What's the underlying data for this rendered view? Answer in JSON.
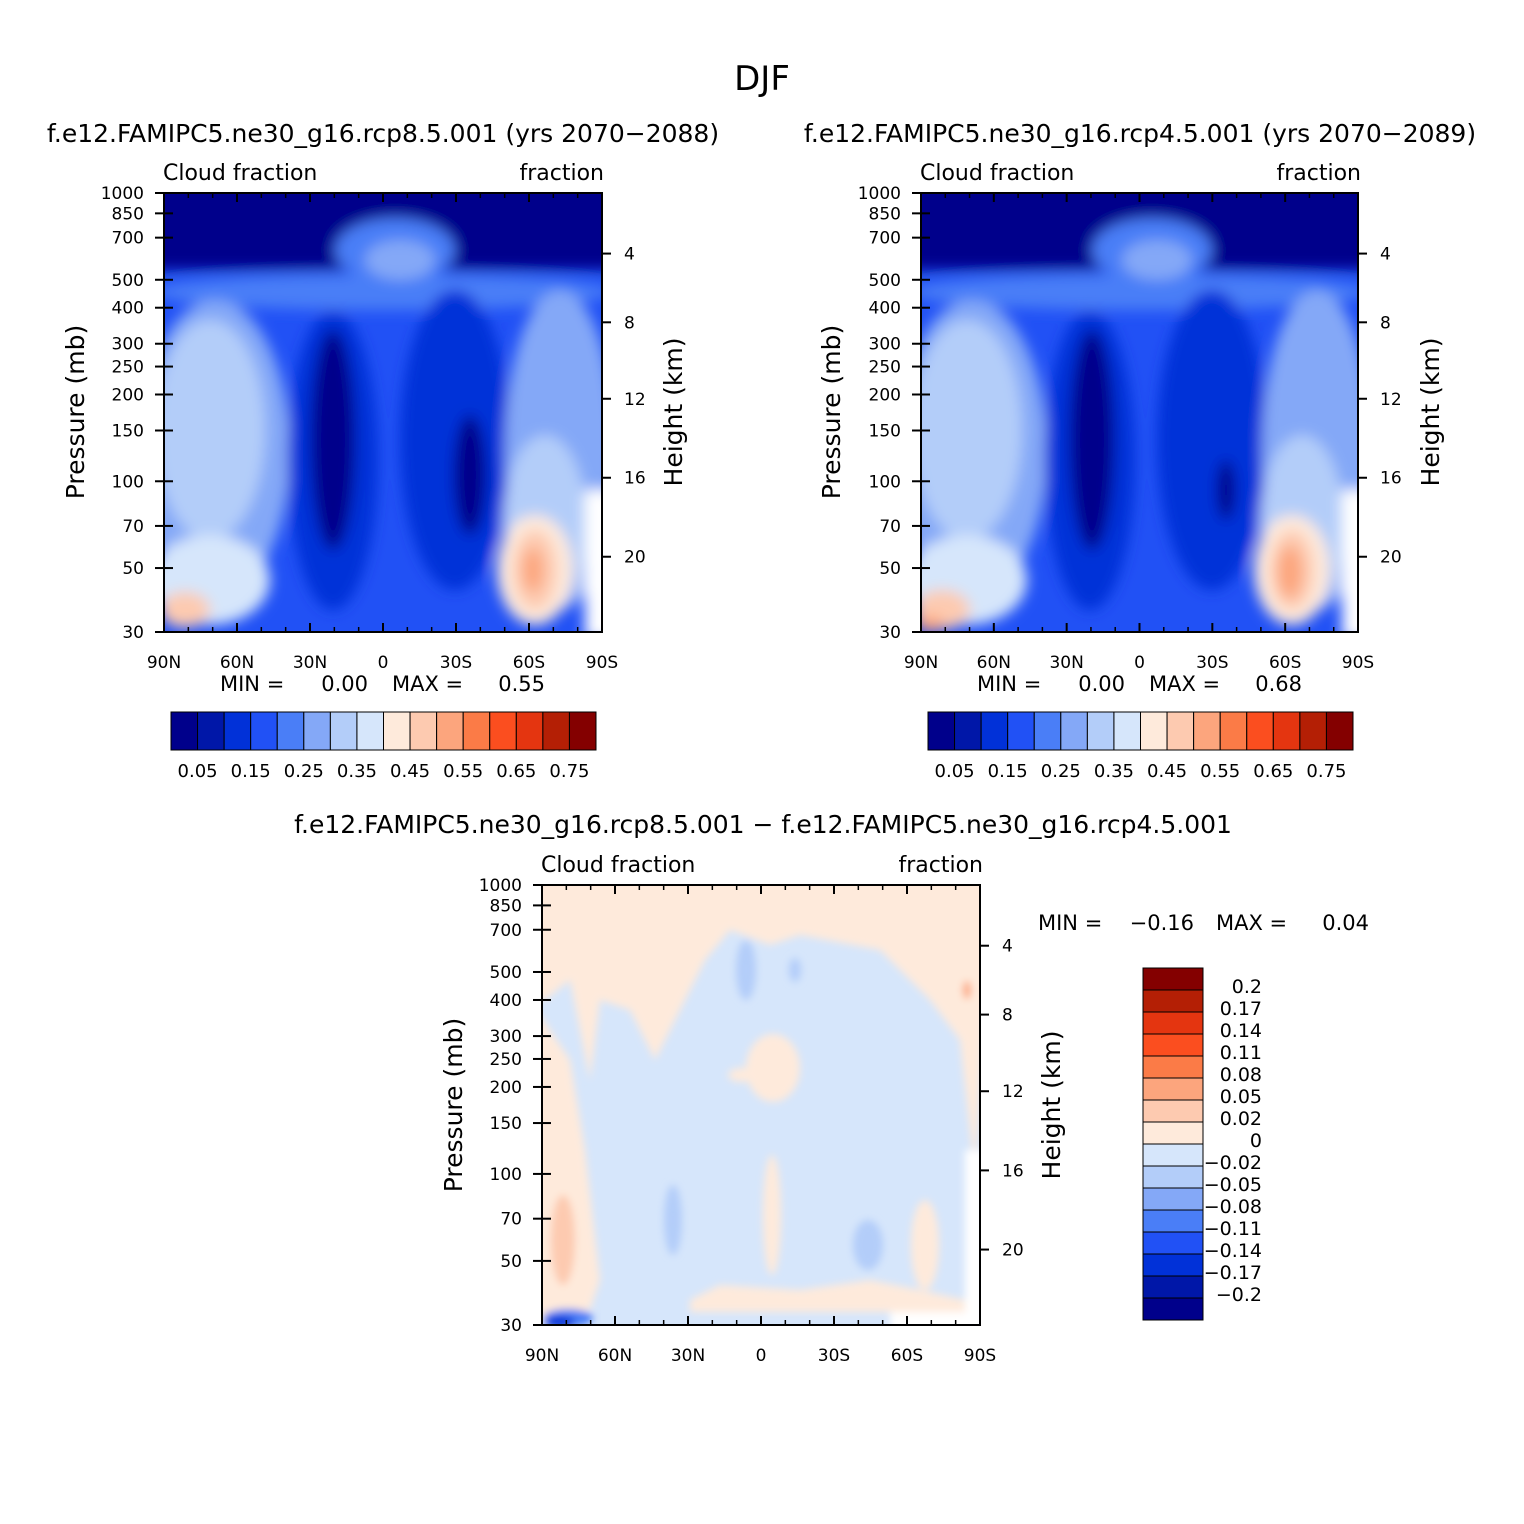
{
  "figure": {
    "title": "DJF"
  },
  "colors": {
    "main_scale": [
      "#00008b",
      "#0017a8",
      "#0131d8",
      "#2151f5",
      "#4a7ef7",
      "#84a8f7",
      "#b3cdf9",
      "#d6e6fb",
      "#feeadb",
      "#fdcab0",
      "#fca57d",
      "#fb7b47",
      "#fb4e1f",
      "#e43510",
      "#b41f05",
      "#840000"
    ],
    "diff_scale": [
      "#00008b",
      "#0017a8",
      "#0131d8",
      "#2151f5",
      "#4a7ef7",
      "#84a8f7",
      "#b3cdf9",
      "#d6e6fb",
      "#feeadb",
      "#fdcab0",
      "#fca57d",
      "#fb7b47",
      "#fb4e1f",
      "#e43510",
      "#b41f05",
      "#840000"
    ]
  },
  "chart_data": [
    {
      "type": "heatmap",
      "title": "f.e12.FAMIPC5.ne30_g16.rcp8.5.001 (yrs 2070-2088)",
      "left_label": "Cloud fraction",
      "right_label": "fraction",
      "xlabel": "",
      "ylabel": "Pressure (mb)",
      "y2label": "Height (km)",
      "x_ticks": [
        "90N",
        "60N",
        "30N",
        "0",
        "30S",
        "60S",
        "90S"
      ],
      "x_range": [
        90,
        -90
      ],
      "y_ticks": [
        "30",
        "50",
        "70",
        "100",
        "150",
        "200",
        "250",
        "300",
        "400",
        "500",
        "700",
        "850",
        "1000"
      ],
      "y_range": [
        1000,
        30
      ],
      "y_scale": "log",
      "y2_ticks": [
        "20",
        "16",
        "12",
        "8",
        "4"
      ],
      "stats": {
        "min_label": "MIN =",
        "min": "0.00",
        "max_label": "MAX =",
        "max": "0.55"
      },
      "levels": [
        "0.05",
        "0.15",
        "0.25",
        "0.35",
        "0.45",
        "0.55",
        "0.65",
        "0.75"
      ]
    },
    {
      "type": "heatmap",
      "title": "f.e12.FAMIPC5.ne30_g16.rcp4.5.001 (yrs 2070-2089)",
      "left_label": "Cloud fraction",
      "right_label": "fraction",
      "xlabel": "",
      "ylabel": "Pressure (mb)",
      "y2label": "Height (km)",
      "x_ticks": [
        "90N",
        "60N",
        "30N",
        "0",
        "30S",
        "60S",
        "90S"
      ],
      "x_range": [
        90,
        -90
      ],
      "y_ticks": [
        "30",
        "50",
        "70",
        "100",
        "150",
        "200",
        "250",
        "300",
        "400",
        "500",
        "700",
        "850",
        "1000"
      ],
      "y_range": [
        1000,
        30
      ],
      "y_scale": "log",
      "y2_ticks": [
        "20",
        "16",
        "12",
        "8",
        "4"
      ],
      "stats": {
        "min_label": "MIN =",
        "min": "0.00",
        "max_label": "MAX =",
        "max": "0.68"
      },
      "levels": [
        "0.05",
        "0.15",
        "0.25",
        "0.35",
        "0.45",
        "0.55",
        "0.65",
        "0.75"
      ]
    },
    {
      "type": "heatmap",
      "title": "f.e12.FAMIPC5.ne30_g16.rcp8.5.001 - f.e12.FAMIPC5.ne30_g16.rcp4.5.001",
      "left_label": "Cloud fraction",
      "right_label": "fraction",
      "xlabel": "",
      "ylabel": "Pressure (mb)",
      "y2label": "Height (km)",
      "x_ticks": [
        "90N",
        "60N",
        "30N",
        "0",
        "30S",
        "60S",
        "90S"
      ],
      "x_range": [
        90,
        -90
      ],
      "y_ticks": [
        "30",
        "50",
        "70",
        "100",
        "150",
        "200",
        "250",
        "300",
        "400",
        "500",
        "700",
        "850",
        "1000"
      ],
      "y_range": [
        1000,
        30
      ],
      "y_scale": "log",
      "y2_ticks": [
        "20",
        "16",
        "12",
        "8",
        "4"
      ],
      "stats": {
        "min_label": "MIN =",
        "min": "-0.16",
        "max_label": "MAX =",
        "max": "0.04"
      },
      "levels": [
        "0.2",
        "0.17",
        "0.14",
        "0.11",
        "0.08",
        "0.05",
        "0.02",
        "0",
        "-0.02",
        "-0.05",
        "-0.08",
        "-0.11",
        "-0.14",
        "-0.17",
        "-0.2"
      ]
    }
  ]
}
